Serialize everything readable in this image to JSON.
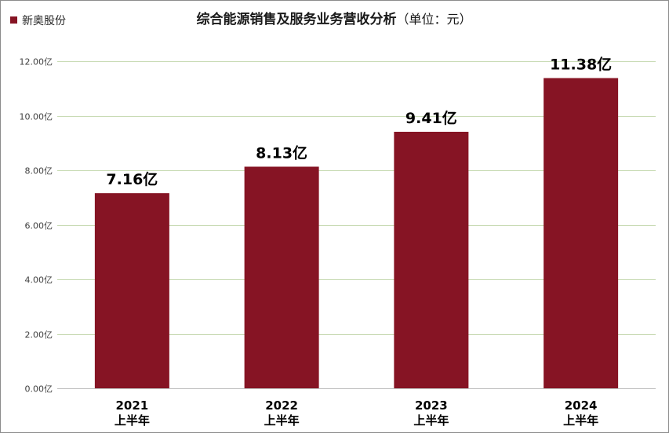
{
  "chart_data": {
    "type": "bar",
    "title": "综合能源销售及服务业务营收分析",
    "title_unit": "（单位：元）",
    "legend": {
      "label": "新奥股份",
      "position": "top-left"
    },
    "categories": [
      [
        "2021",
        "上半年"
      ],
      [
        "2022",
        "上半年"
      ],
      [
        "2023",
        "上半年"
      ],
      [
        "2024",
        "上半年"
      ]
    ],
    "series": [
      {
        "name": "新奥股份",
        "values": [
          7.16,
          8.13,
          9.41,
          11.38
        ],
        "data_labels": [
          "7.16亿",
          "8.13亿",
          "9.41亿",
          "11.38亿"
        ]
      }
    ],
    "ylim": [
      0,
      12
    ],
    "yticks": [
      0,
      2,
      4,
      6,
      8,
      10,
      12
    ],
    "ytick_labels": [
      "0.00亿",
      "2.00亿",
      "4.00亿",
      "6.00亿",
      "8.00亿",
      "10.00亿",
      "12.00亿"
    ],
    "grid": true,
    "colors": {
      "bar": "#861424",
      "grid": "#c9dbb5",
      "legend_marker": "#861424"
    }
  }
}
